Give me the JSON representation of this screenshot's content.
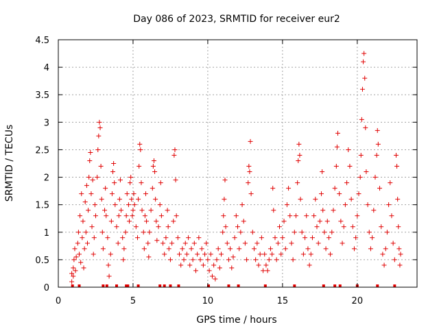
{
  "colors": {
    "marker": "#e00000",
    "gap_marker": "#e00000",
    "grid": "#a0a0a0",
    "frame": "#000000"
  },
  "chart_data": {
    "type": "scatter",
    "title": "Day 086 of 2023, SRMTID for receiver eur2",
    "xlabel": "GPS time / hours",
    "ylabel": "SRMTID / TECUs",
    "xlim": [
      0,
      24
    ],
    "ylim": [
      0,
      4.5
    ],
    "grid": true,
    "marker": "+",
    "x_ticks": [
      0,
      5,
      10,
      15,
      20
    ],
    "x_tick_labels": [
      "0",
      "5",
      "10",
      "15",
      "20"
    ],
    "y_ticks": [
      0,
      0.5,
      1,
      1.5,
      2,
      2.5,
      3,
      3.5,
      4,
      4.5
    ],
    "y_tick_labels": [
      "0",
      "0.5",
      "1",
      "1.5",
      "2",
      "2.5",
      "3",
      "3.5",
      "4",
      "4.5"
    ],
    "series": [
      {
        "name": "SRMTID",
        "points": [
          [
            0.9,
            0.1
          ],
          [
            0.9,
            0.25
          ],
          [
            1.0,
            0.35
          ],
          [
            1.0,
            0.2
          ],
          [
            1.05,
            0.5
          ],
          [
            1.1,
            0.7
          ],
          [
            1.15,
            0.3
          ],
          [
            1.2,
            0.55
          ],
          [
            1.3,
            0.8
          ],
          [
            1.35,
            1.0
          ],
          [
            1.4,
            0.6
          ],
          [
            1.45,
            1.3
          ],
          [
            1.5,
            0.45
          ],
          [
            1.55,
            1.7
          ],
          [
            1.6,
            0.9
          ],
          [
            1.65,
            1.2
          ],
          [
            1.7,
            0.35
          ],
          [
            1.75,
            0.7
          ],
          [
            1.8,
            1.55
          ],
          [
            1.85,
            1.0
          ],
          [
            1.9,
            1.85
          ],
          [
            1.95,
            0.8
          ],
          [
            2.0,
            1.4
          ],
          [
            2.05,
            2.0
          ],
          [
            2.1,
            2.3
          ],
          [
            2.15,
            2.45
          ],
          [
            2.2,
            1.7
          ],
          [
            2.25,
            1.1
          ],
          [
            2.3,
            1.95
          ],
          [
            2.35,
            0.6
          ],
          [
            2.4,
            0.9
          ],
          [
            2.45,
            1.5
          ],
          [
            2.5,
            1.3
          ],
          [
            2.6,
            2.0
          ],
          [
            2.65,
            2.5
          ],
          [
            2.7,
            2.75
          ],
          [
            2.75,
            3.0
          ],
          [
            2.8,
            2.9
          ],
          [
            2.85,
            2.2
          ],
          [
            2.9,
            1.6
          ],
          [
            2.95,
            1.0
          ],
          [
            3.0,
            0.7
          ],
          [
            3.1,
            1.4
          ],
          [
            3.15,
            1.8
          ],
          [
            3.2,
            1.3
          ],
          [
            3.3,
            0.9
          ],
          [
            3.35,
            0.4
          ],
          [
            3.4,
            0.2
          ],
          [
            3.5,
            0.6
          ],
          [
            3.55,
            1.2
          ],
          [
            3.6,
            1.7
          ],
          [
            3.65,
            2.1
          ],
          [
            3.7,
            2.25
          ],
          [
            3.75,
            1.9
          ],
          [
            3.8,
            1.5
          ],
          [
            3.9,
            1.1
          ],
          [
            4.0,
            0.8
          ],
          [
            4.05,
            1.3
          ],
          [
            4.1,
            1.6
          ],
          [
            4.15,
            1.95
          ],
          [
            4.2,
            1.4
          ],
          [
            4.3,
            0.9
          ],
          [
            4.35,
            0.5
          ],
          [
            4.4,
            0.7
          ],
          [
            4.5,
            1.0
          ],
          [
            4.55,
            1.3
          ],
          [
            4.6,
            1.7
          ],
          [
            4.7,
            1.5
          ],
          [
            4.75,
            1.2
          ],
          [
            4.8,
            1.9
          ],
          [
            4.85,
            2.0
          ],
          [
            4.9,
            1.6
          ],
          [
            4.95,
            1.3
          ],
          [
            5.0,
            1.4
          ],
          [
            5.05,
            1.7
          ],
          [
            5.1,
            1.5
          ],
          [
            5.2,
            1.1
          ],
          [
            5.3,
            0.9
          ],
          [
            5.35,
            1.6
          ],
          [
            5.4,
            2.2
          ],
          [
            5.45,
            2.6
          ],
          [
            5.5,
            2.5
          ],
          [
            5.55,
            1.9
          ],
          [
            5.6,
            1.4
          ],
          [
            5.7,
            1.0
          ],
          [
            5.75,
            0.7
          ],
          [
            5.8,
            1.3
          ],
          [
            5.85,
            1.7
          ],
          [
            5.9,
            1.2
          ],
          [
            6.0,
            0.8
          ],
          [
            6.05,
            0.55
          ],
          [
            6.1,
            1.0
          ],
          [
            6.2,
            1.4
          ],
          [
            6.3,
            1.8
          ],
          [
            6.35,
            2.2
          ],
          [
            6.4,
            2.3
          ],
          [
            6.45,
            2.1
          ],
          [
            6.5,
            1.6
          ],
          [
            6.55,
            1.2
          ],
          [
            6.6,
            0.85
          ],
          [
            6.7,
            1.1
          ],
          [
            6.8,
            1.5
          ],
          [
            6.85,
            1.9
          ],
          [
            6.9,
            1.3
          ],
          [
            7.0,
            0.8
          ],
          [
            7.1,
            0.6
          ],
          [
            7.2,
            0.9
          ],
          [
            7.3,
            1.4
          ],
          [
            7.35,
            1.1
          ],
          [
            7.4,
            0.7
          ],
          [
            7.5,
            0.5
          ],
          [
            7.6,
            0.8
          ],
          [
            7.7,
            1.2
          ],
          [
            7.75,
            2.4
          ],
          [
            7.8,
            2.5
          ],
          [
            7.85,
            1.95
          ],
          [
            7.9,
            1.3
          ],
          [
            8.0,
            0.9
          ],
          [
            8.1,
            0.6
          ],
          [
            8.2,
            0.4
          ],
          [
            8.3,
            0.7
          ],
          [
            8.4,
            0.5
          ],
          [
            8.5,
            0.8
          ],
          [
            8.6,
            0.6
          ],
          [
            8.7,
            0.9
          ],
          [
            8.8,
            0.4
          ],
          [
            8.9,
            0.7
          ],
          [
            9.0,
            0.5
          ],
          [
            9.1,
            0.8
          ],
          [
            9.2,
            0.3
          ],
          [
            9.3,
            0.6
          ],
          [
            9.4,
            0.9
          ],
          [
            9.5,
            0.5
          ],
          [
            9.6,
            0.7
          ],
          [
            9.7,
            0.4
          ],
          [
            9.8,
            0.6
          ],
          [
            9.9,
            0.8
          ],
          [
            10.0,
            0.5
          ],
          [
            10.1,
            0.3
          ],
          [
            10.2,
            0.6
          ],
          [
            10.3,
            0.2
          ],
          [
            10.4,
            0.4
          ],
          [
            10.5,
            0.15
          ],
          [
            10.6,
            0.5
          ],
          [
            10.7,
            0.7
          ],
          [
            10.8,
            0.35
          ],
          [
            10.9,
            0.6
          ],
          [
            11.0,
            1.0
          ],
          [
            11.05,
            1.3
          ],
          [
            11.1,
            1.6
          ],
          [
            11.15,
            1.95
          ],
          [
            11.2,
            1.1
          ],
          [
            11.3,
            0.8
          ],
          [
            11.4,
            0.5
          ],
          [
            11.5,
            0.7
          ],
          [
            11.6,
            0.35
          ],
          [
            11.7,
            0.55
          ],
          [
            11.8,
            0.9
          ],
          [
            11.9,
            1.3
          ],
          [
            12.0,
            1.1
          ],
          [
            12.1,
            0.7
          ],
          [
            12.2,
            1.0
          ],
          [
            12.3,
            1.5
          ],
          [
            12.4,
            1.2
          ],
          [
            12.5,
            0.8
          ],
          [
            12.6,
            0.5
          ],
          [
            12.7,
            1.9
          ],
          [
            12.75,
            2.2
          ],
          [
            12.8,
            2.1
          ],
          [
            12.85,
            2.65
          ],
          [
            12.9,
            1.7
          ],
          [
            13.0,
            1.0
          ],
          [
            13.1,
            0.7
          ],
          [
            13.2,
            0.5
          ],
          [
            13.3,
            0.8
          ],
          [
            13.4,
            0.4
          ],
          [
            13.5,
            0.6
          ],
          [
            13.6,
            0.9
          ],
          [
            13.7,
            0.3
          ],
          [
            13.8,
            0.6
          ],
          [
            13.9,
            0.4
          ],
          [
            14.0,
            0.3
          ],
          [
            14.1,
            0.5
          ],
          [
            14.2,
            0.7
          ],
          [
            14.3,
            0.6
          ],
          [
            14.35,
            1.8
          ],
          [
            14.4,
            1.4
          ],
          [
            14.5,
            0.9
          ],
          [
            14.6,
            0.5
          ],
          [
            14.7,
            0.8
          ],
          [
            14.8,
            1.1
          ],
          [
            14.9,
            0.6
          ],
          [
            15.0,
            0.9
          ],
          [
            15.1,
            1.2
          ],
          [
            15.2,
            0.7
          ],
          [
            15.3,
            1.5
          ],
          [
            15.4,
            1.8
          ],
          [
            15.5,
            1.3
          ],
          [
            15.6,
            0.8
          ],
          [
            15.7,
            0.5
          ],
          [
            15.8,
            1.0
          ],
          [
            15.9,
            1.3
          ],
          [
            16.0,
            1.9
          ],
          [
            16.05,
            2.3
          ],
          [
            16.1,
            2.6
          ],
          [
            16.15,
            2.4
          ],
          [
            16.2,
            1.6
          ],
          [
            16.3,
            1.0
          ],
          [
            16.4,
            0.6
          ],
          [
            16.5,
            0.9
          ],
          [
            16.6,
            1.3
          ],
          [
            16.7,
            0.7
          ],
          [
            16.8,
            0.4
          ],
          [
            16.9,
            0.6
          ],
          [
            17.0,
            0.9
          ],
          [
            17.1,
            1.3
          ],
          [
            17.2,
            1.6
          ],
          [
            17.3,
            1.1
          ],
          [
            17.4,
            0.8
          ],
          [
            17.5,
            1.2
          ],
          [
            17.6,
            1.7
          ],
          [
            17.65,
            2.1
          ],
          [
            17.7,
            1.4
          ],
          [
            17.8,
            1.0
          ],
          [
            17.9,
            0.7
          ],
          [
            18.0,
            1.2
          ],
          [
            18.1,
            0.9
          ],
          [
            18.2,
            0.6
          ],
          [
            18.3,
            1.0
          ],
          [
            18.4,
            1.4
          ],
          [
            18.5,
            1.8
          ],
          [
            18.6,
            2.2
          ],
          [
            18.65,
            2.55
          ],
          [
            18.7,
            2.8
          ],
          [
            18.8,
            1.7
          ],
          [
            18.9,
            1.2
          ],
          [
            19.0,
            0.8
          ],
          [
            19.1,
            1.1
          ],
          [
            19.2,
            1.5
          ],
          [
            19.3,
            1.9
          ],
          [
            19.4,
            2.5
          ],
          [
            19.5,
            2.2
          ],
          [
            19.6,
            1.6
          ],
          [
            19.7,
            1.1
          ],
          [
            19.8,
            0.7
          ],
          [
            19.9,
            0.9
          ],
          [
            20.0,
            1.3
          ],
          [
            20.1,
            1.7
          ],
          [
            20.2,
            2.0
          ],
          [
            20.25,
            2.4
          ],
          [
            20.3,
            3.05
          ],
          [
            20.35,
            3.6
          ],
          [
            20.4,
            4.1
          ],
          [
            20.45,
            4.25
          ],
          [
            20.5,
            3.8
          ],
          [
            20.55,
            2.9
          ],
          [
            20.6,
            2.1
          ],
          [
            20.7,
            1.5
          ],
          [
            20.8,
            1.0
          ],
          [
            20.9,
            0.7
          ],
          [
            21.0,
            0.9
          ],
          [
            21.1,
            1.4
          ],
          [
            21.2,
            2.0
          ],
          [
            21.3,
            2.4
          ],
          [
            21.35,
            2.85
          ],
          [
            21.4,
            2.6
          ],
          [
            21.5,
            1.8
          ],
          [
            21.6,
            1.1
          ],
          [
            21.7,
            0.6
          ],
          [
            21.8,
            0.4
          ],
          [
            21.9,
            0.7
          ],
          [
            22.0,
            1.0
          ],
          [
            22.1,
            1.5
          ],
          [
            22.2,
            1.9
          ],
          [
            22.3,
            1.3
          ],
          [
            22.4,
            0.8
          ],
          [
            22.5,
            0.5
          ],
          [
            22.6,
            2.4
          ],
          [
            22.65,
            2.2
          ],
          [
            22.7,
            1.6
          ],
          [
            22.75,
            1.1
          ],
          [
            22.8,
            0.7
          ],
          [
            22.85,
            0.4
          ],
          [
            22.9,
            0.6
          ]
        ]
      }
    ],
    "gap_markers_x": [
      0.95,
      1.4,
      3.0,
      3.25,
      3.9,
      4.55,
      4.65,
      5.35,
      6.8,
      7.1,
      7.5,
      8.05,
      10.05,
      11.4,
      12.05,
      13.85,
      15.8,
      17.75,
      18.5,
      18.85,
      20.0,
      21.35,
      22.5
    ]
  }
}
